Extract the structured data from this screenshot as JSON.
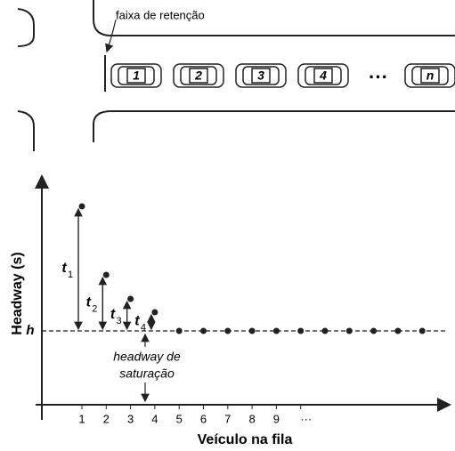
{
  "road": {
    "stop_line_label": "faixa de retenção",
    "vehicles": [
      "1",
      "2",
      "3",
      "4",
      "n"
    ],
    "ellipsis": "···"
  },
  "chart": {
    "y_axis_label": "Headway (s)",
    "x_axis_label": "Veículo na fila",
    "h_label": "h",
    "x_ticks": [
      "1",
      "2",
      "3",
      "4",
      "5",
      "6",
      "7",
      "8",
      "9",
      "···"
    ],
    "intervals": [
      {
        "letter": "t",
        "sub": "1"
      },
      {
        "letter": "t",
        "sub": "2"
      },
      {
        "letter": "t",
        "sub": "3"
      },
      {
        "letter": "t",
        "sub": "4"
      }
    ],
    "annotation": [
      "headway de",
      "saturação"
    ]
  }
}
